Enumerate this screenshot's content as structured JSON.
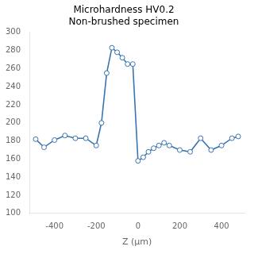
{
  "chart_data": {
    "type": "line",
    "title": "Microhardness HV0.2\nNon-brushed specimen",
    "xlabel": "Z (μm)",
    "x": [
      -490,
      -450,
      -400,
      -350,
      -300,
      -250,
      -200,
      -175,
      -150,
      -125,
      -100,
      -75,
      -50,
      -25,
      0,
      25,
      50,
      75,
      100,
      125,
      150,
      200,
      250,
      300,
      350,
      400,
      450,
      480
    ],
    "values": [
      182,
      173,
      181,
      186,
      183,
      183,
      175,
      200,
      255,
      283,
      278,
      272,
      265,
      265,
      158,
      162,
      168,
      172,
      175,
      178,
      175,
      170,
      168,
      183,
      170,
      175,
      183,
      185
    ],
    "color": "#3a74b0",
    "marker": "o",
    "xlim": [
      -520,
      510
    ],
    "ylim": [
      100,
      300
    ],
    "xticks": [
      -400,
      -200,
      0,
      200,
      400
    ],
    "yticks": [
      100,
      120,
      140,
      160,
      180,
      200,
      220,
      240,
      260,
      280,
      300
    ],
    "grid": false
  }
}
